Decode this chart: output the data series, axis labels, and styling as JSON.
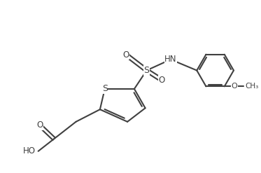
{
  "background_color": "#ffffff",
  "line_color": "#404040",
  "line_width": 1.5,
  "font_size": 8.5,
  "figsize": [
    3.73,
    2.47
  ],
  "dpi": 100,
  "xlim": [
    0,
    10
  ],
  "ylim": [
    0,
    6.6
  ]
}
